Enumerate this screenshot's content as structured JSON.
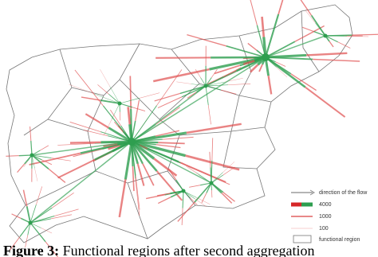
{
  "legend": {
    "items": [
      "direction of the flow",
      "4000",
      "1000",
      "100",
      "functional region"
    ]
  },
  "caption": {
    "label": "Figure 3:",
    "text": "Functional regions after second aggregation"
  }
}
